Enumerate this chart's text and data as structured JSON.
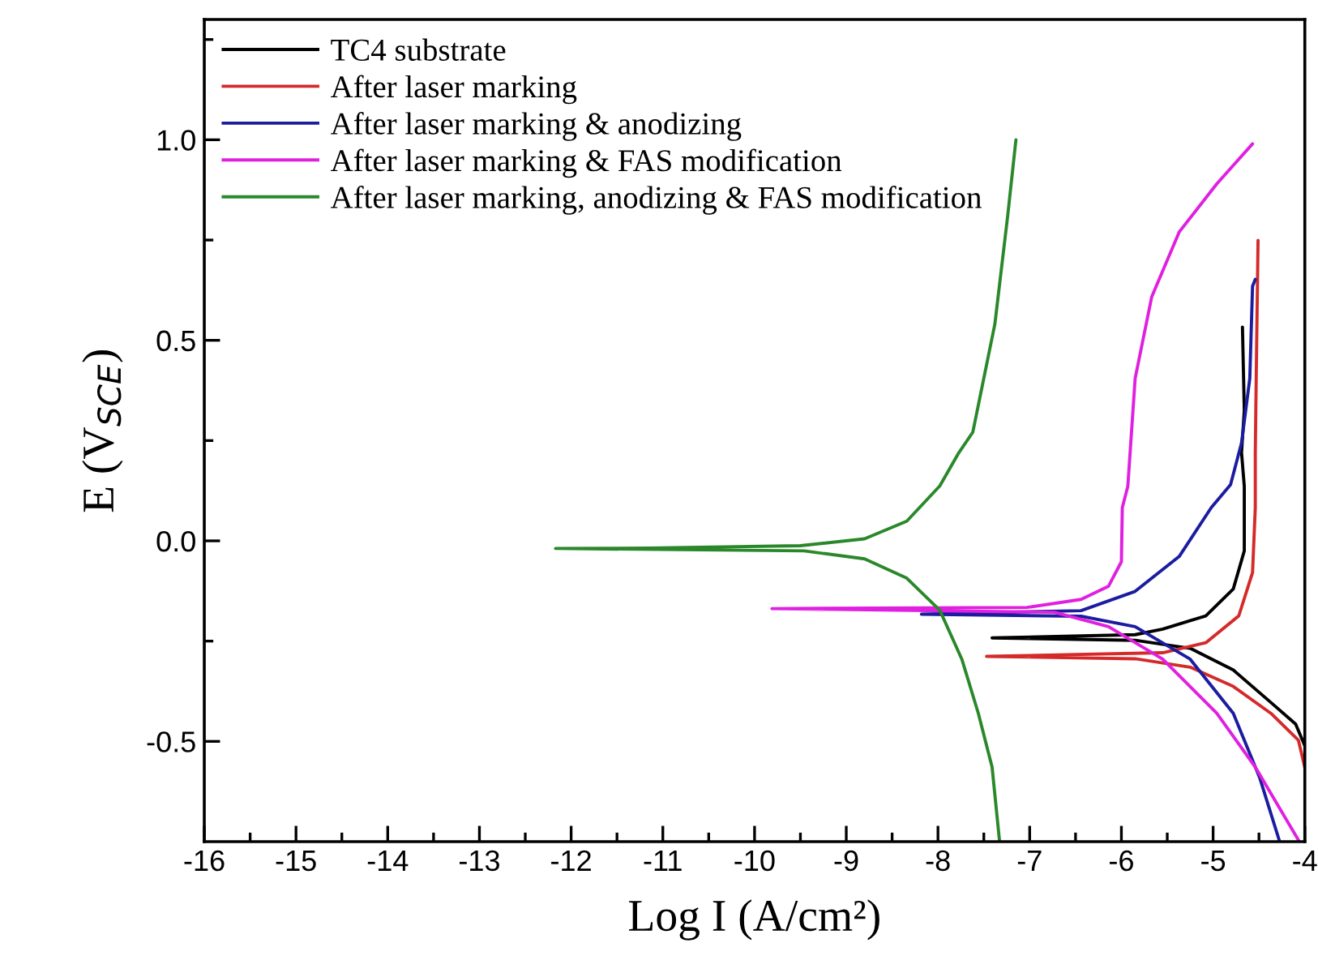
{
  "chart_data": {
    "type": "line",
    "xlabel": "Log I (A/cm²)",
    "ylabel": "E (V$_{SCE}$)",
    "xlim": [
      -16,
      -4
    ],
    "ylim": [
      -0.75,
      1.3
    ],
    "xticks": [
      -16,
      {
        "value": -15.5,
        "label": null
      },
      -15,
      {
        "value": -14.5,
        "label": null
      },
      -14,
      {
        "value": -13.5,
        "label": null
      },
      -13,
      {
        "value": -12.5,
        "label": null
      },
      -12,
      {
        "value": -11.5,
        "label": null
      },
      -11,
      {
        "value": -10.5,
        "label": null
      },
      -10,
      {
        "value": -9.5,
        "label": null
      },
      -9,
      {
        "value": -8.5,
        "label": null
      },
      -8,
      {
        "value": -7.5,
        "label": null
      },
      -7,
      {
        "value": -6.5,
        "label": null
      },
      -6,
      {
        "value": -5.5,
        "label": null
      },
      -5,
      {
        "value": -4.5,
        "label": null
      },
      -4
    ],
    "yticks": [
      {
        "value": -0.5,
        "label": "-0.5"
      },
      {
        "value": -0.25,
        "label": null
      },
      {
        "value": 0.0,
        "label": "0.0"
      },
      {
        "value": 0.25,
        "label": null
      },
      {
        "value": 0.5,
        "label": "0.5"
      },
      {
        "value": 0.75,
        "label": null
      },
      {
        "value": 1.0,
        "label": "1.0"
      },
      {
        "value": 1.25,
        "label": null
      }
    ],
    "legend": "top left",
    "grid": false,
    "marker": "none",
    "line_style": "solid",
    "series": [
      {
        "name": "TC4 substrate",
        "color": "#000000",
        "x": [
          -4.68,
          -4.66,
          -4.69,
          -4.66,
          -4.66,
          -4.78,
          -5.08,
          -5.55,
          -5.85,
          -7.41,
          -5.85,
          -5.25,
          -4.78,
          -4.37,
          -4.1,
          -4.0
        ],
        "values": [
          0.533,
          0.325,
          0.22,
          0.136,
          -0.025,
          -0.12,
          -0.187,
          -0.22,
          -0.234,
          -0.242,
          -0.248,
          -0.268,
          -0.322,
          -0.403,
          -0.457,
          -0.511
        ]
      },
      {
        "name": "After laser marking",
        "color": "#d42a2a",
        "x": [
          -4.51,
          -4.53,
          -4.54,
          -4.54,
          -4.57,
          -4.72,
          -5.08,
          -5.55,
          -7.47,
          -5.85,
          -5.25,
          -4.78,
          -4.37,
          -4.07,
          -4.0
        ],
        "values": [
          0.749,
          0.405,
          0.22,
          0.083,
          -0.079,
          -0.187,
          -0.254,
          -0.279,
          -0.288,
          -0.294,
          -0.315,
          -0.363,
          -0.43,
          -0.497,
          -0.565
        ]
      },
      {
        "name": "After laser marking & anodizing",
        "color": "#1c1ca0",
        "x": [
          -4.54,
          -4.57,
          -4.6,
          -4.69,
          -4.81,
          -5.02,
          -5.37,
          -5.85,
          -6.44,
          -8.18,
          -6.44,
          -5.85,
          -5.25,
          -4.78,
          -4.49,
          -4.28
        ],
        "values": [
          0.652,
          0.635,
          0.405,
          0.244,
          0.14,
          0.083,
          -0.039,
          -0.126,
          -0.174,
          -0.183,
          -0.188,
          -0.214,
          -0.295,
          -0.43,
          -0.592,
          -0.746
        ]
      },
      {
        "name": "After laser marking & FAS modification",
        "color": "#e020e0",
        "x": [
          -4.57,
          -4.96,
          -5.37,
          -5.67,
          -5.85,
          -5.93,
          -5.99,
          -6.0,
          -6.14,
          -6.44,
          -7.03,
          -9.81,
          -6.73,
          -6.14,
          -5.55,
          -4.96,
          -4.54,
          -4.07
        ],
        "values": [
          0.99,
          0.89,
          0.77,
          0.608,
          0.405,
          0.136,
          0.083,
          -0.052,
          -0.113,
          -0.146,
          -0.166,
          -0.169,
          -0.178,
          -0.214,
          -0.295,
          -0.43,
          -0.564,
          -0.746
        ]
      },
      {
        "name": "After laser marking, anodizing & FAS modification",
        "color": "#2a882a",
        "x": [
          -7.15,
          -7.24,
          -7.38,
          -7.62,
          -7.78,
          -7.98,
          -8.34,
          -8.8,
          -9.5,
          -11.15,
          -12.17,
          -9.46,
          -8.8,
          -8.34,
          -7.98,
          -7.74,
          -7.56,
          -7.41,
          -7.33
        ],
        "values": [
          1.0,
          0.81,
          0.54,
          0.271,
          0.217,
          0.137,
          0.049,
          0.005,
          -0.012,
          -0.018,
          -0.019,
          -0.025,
          -0.045,
          -0.093,
          -0.173,
          -0.295,
          -0.43,
          -0.564,
          -0.746
        ]
      }
    ]
  }
}
